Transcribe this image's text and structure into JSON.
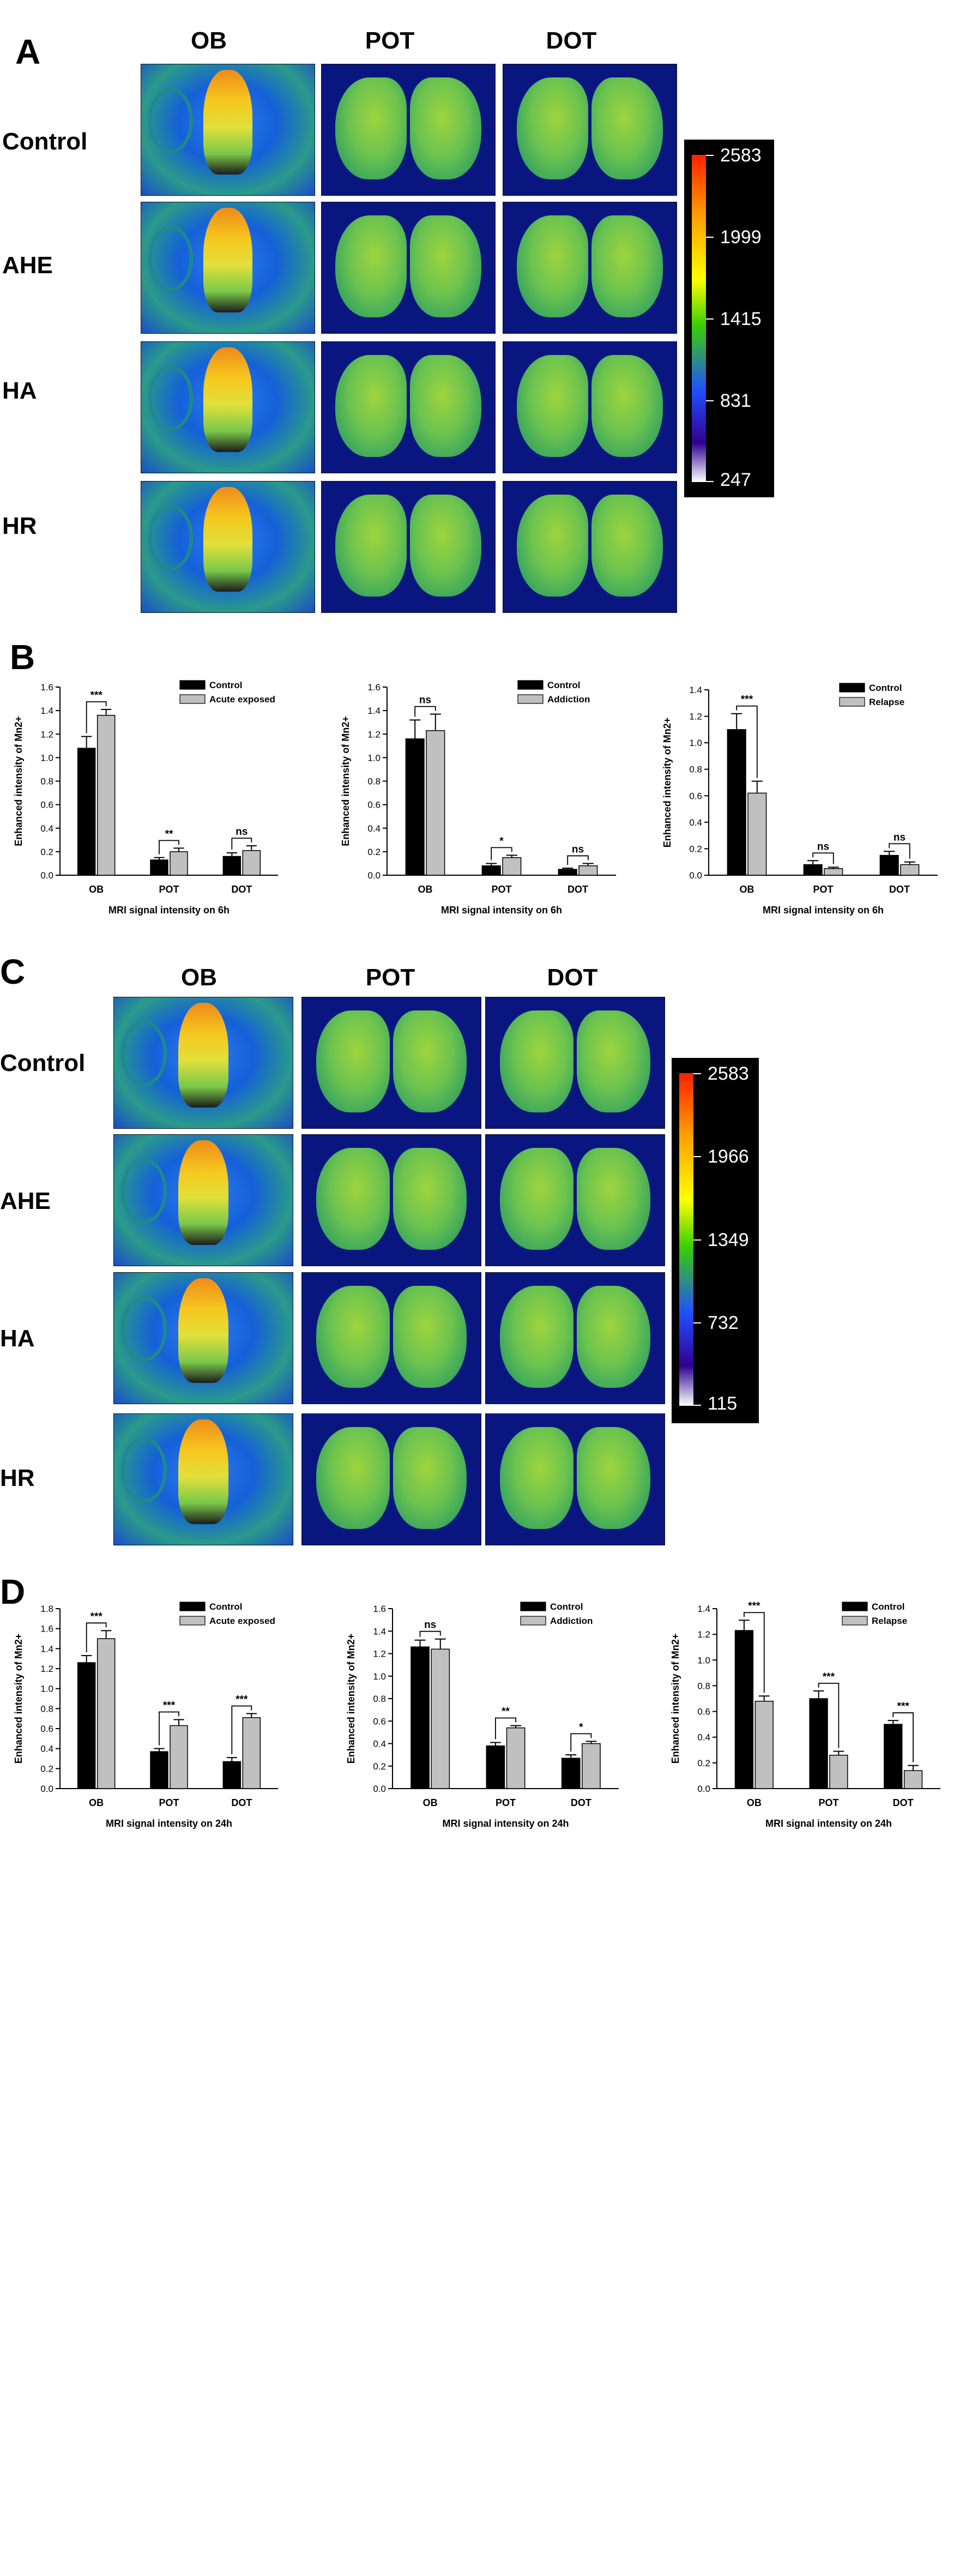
{
  "panelA": {
    "label": "A",
    "columns": [
      "OB",
      "POT",
      "DOT"
    ],
    "rows": [
      "Control",
      "AHE",
      "HA",
      "HR"
    ],
    "colorbar": [
      "2583",
      "1999",
      "1415",
      "831",
      "247"
    ]
  },
  "panelB": {
    "label": "B"
  },
  "panelC": {
    "label": "C",
    "columns": [
      "OB",
      "POT",
      "DOT"
    ],
    "rows": [
      "Control",
      "AHE",
      "HA",
      "HR"
    ],
    "colorbar": [
      "2583",
      "1966",
      "1349",
      "732",
      "115"
    ]
  },
  "panelD": {
    "label": "D"
  },
  "chart_data": [
    {
      "panel": "B",
      "type": "bar",
      "categories": [
        "OB",
        "POT",
        "DOT"
      ],
      "series": [
        {
          "name": "Control",
          "values": [
            1.08,
            0.13,
            0.16
          ],
          "errors": [
            0.1,
            0.02,
            0.03
          ],
          "color": "#000000"
        },
        {
          "name": "Acute exposed",
          "values": [
            1.36,
            0.2,
            0.21
          ],
          "errors": [
            0.05,
            0.03,
            0.04
          ],
          "color": "#c0c0c0"
        }
      ],
      "significance": [
        "***",
        "**",
        "ns"
      ],
      "ylabel": "Enhanced intensity of Mn2+",
      "xlabel": "MRI signal intensity on 6h",
      "ylim": [
        0,
        1.6
      ],
      "yticks": [
        "0.0",
        "0.2",
        "0.4",
        "0.6",
        "0.8",
        "1.0",
        "1.2",
        "1.4",
        "1.6"
      ]
    },
    {
      "panel": "B",
      "type": "bar",
      "categories": [
        "OB",
        "POT",
        "DOT"
      ],
      "series": [
        {
          "name": "Control",
          "values": [
            1.16,
            0.08,
            0.05
          ],
          "errors": [
            0.16,
            0.02,
            0.01
          ],
          "color": "#000000"
        },
        {
          "name": "Addiction",
          "values": [
            1.23,
            0.15,
            0.08
          ],
          "errors": [
            0.14,
            0.02,
            0.02
          ],
          "color": "#c0c0c0"
        }
      ],
      "significance": [
        "ns",
        "*",
        "ns"
      ],
      "ylabel": "Enhanced intensity of Mn2+",
      "xlabel": "MRI signal intensity on 6h",
      "ylim": [
        0,
        1.6
      ],
      "yticks": [
        "0.0",
        "0.2",
        "0.4",
        "0.6",
        "0.8",
        "1.0",
        "1.2",
        "1.4",
        "1.6"
      ]
    },
    {
      "panel": "B",
      "type": "bar",
      "categories": [
        "OB",
        "POT",
        "DOT"
      ],
      "series": [
        {
          "name": "Control",
          "values": [
            1.1,
            0.08,
            0.15
          ],
          "errors": [
            0.12,
            0.03,
            0.03
          ],
          "color": "#000000"
        },
        {
          "name": "Relapse",
          "values": [
            0.62,
            0.05,
            0.08
          ],
          "errors": [
            0.09,
            0.01,
            0.02
          ],
          "color": "#c0c0c0"
        }
      ],
      "significance": [
        "***",
        "ns",
        "ns"
      ],
      "ylabel": "Enhanced intensity of Mn2+",
      "xlabel": "MRI signal intensity on 6h",
      "ylim": [
        0,
        1.4
      ],
      "yticks": [
        "0.0",
        "0.2",
        "0.4",
        "0.6",
        "0.8",
        "1.0",
        "1.2",
        "1.4"
      ]
    },
    {
      "panel": "D",
      "type": "bar",
      "categories": [
        "OB",
        "POT",
        "DOT"
      ],
      "series": [
        {
          "name": "Control",
          "values": [
            1.26,
            0.37,
            0.27
          ],
          "errors": [
            0.07,
            0.03,
            0.04
          ],
          "color": "#000000"
        },
        {
          "name": "Acute exposed",
          "values": [
            1.5,
            0.63,
            0.71
          ],
          "errors": [
            0.08,
            0.06,
            0.04
          ],
          "color": "#c0c0c0"
        }
      ],
      "significance": [
        "***",
        "***",
        "***"
      ],
      "ylabel": "Enhanced intensity of Mn2+",
      "xlabel": "MRI signal intensity on 24h",
      "ylim": [
        0,
        1.8
      ],
      "yticks": [
        "0.0",
        "0.2",
        "0.4",
        "0.6",
        "0.8",
        "1.0",
        "1.2",
        "1.4",
        "1.6",
        "1.8"
      ]
    },
    {
      "panel": "D",
      "type": "bar",
      "categories": [
        "OB",
        "POT",
        "DOT"
      ],
      "series": [
        {
          "name": "Control",
          "values": [
            1.26,
            0.38,
            0.27
          ],
          "errors": [
            0.06,
            0.03,
            0.03
          ],
          "color": "#000000"
        },
        {
          "name": "Addiction",
          "values": [
            1.24,
            0.54,
            0.4
          ],
          "errors": [
            0.09,
            0.02,
            0.02
          ],
          "color": "#c0c0c0"
        }
      ],
      "significance": [
        "ns",
        "**",
        "*"
      ],
      "ylabel": "Enhanced intensity of Mn2+",
      "xlabel": "MRI signal intensity on 24h",
      "ylim": [
        0,
        1.6
      ],
      "yticks": [
        "0.0",
        "0.2",
        "0.4",
        "0.6",
        "0.8",
        "1.0",
        "1.2",
        "1.4",
        "1.6"
      ]
    },
    {
      "panel": "D",
      "type": "bar",
      "categories": [
        "OB",
        "POT",
        "DOT"
      ],
      "series": [
        {
          "name": "Control",
          "values": [
            1.23,
            0.7,
            0.5
          ],
          "errors": [
            0.08,
            0.06,
            0.03
          ],
          "color": "#000000"
        },
        {
          "name": "Relapse",
          "values": [
            0.68,
            0.26,
            0.14
          ],
          "errors": [
            0.04,
            0.03,
            0.04
          ],
          "color": "#c0c0c0"
        }
      ],
      "significance": [
        "***",
        "***",
        "***"
      ],
      "ylabel": "Enhanced intensity of Mn2+",
      "xlabel": "MRI signal intensity on 24h",
      "ylim": [
        0,
        1.4
      ],
      "yticks": [
        "0.0",
        "0.2",
        "0.4",
        "0.6",
        "0.8",
        "1.0",
        "1.2",
        "1.4"
      ]
    }
  ]
}
